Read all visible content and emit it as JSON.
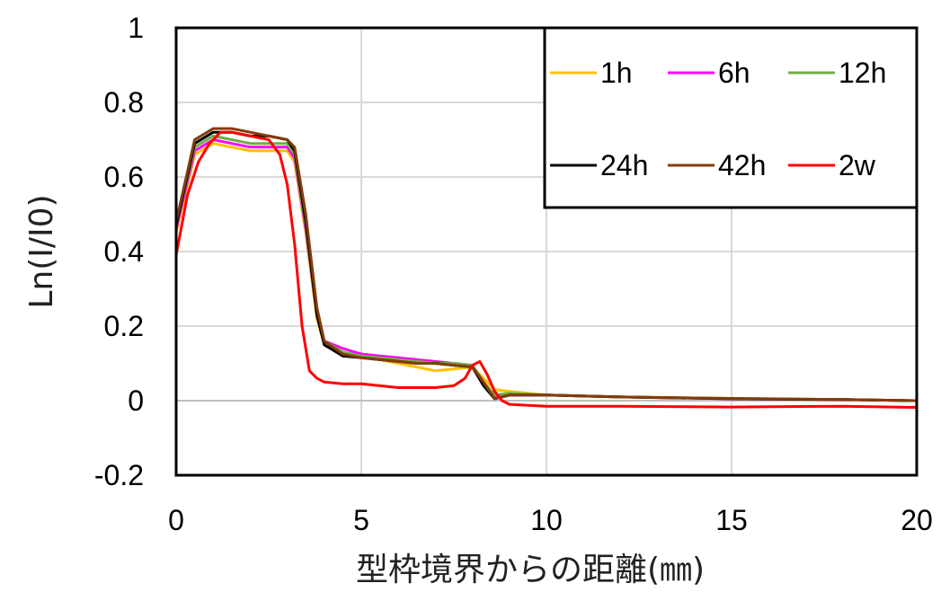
{
  "chart_data": {
    "type": "line",
    "title": "",
    "xlabel": "型枠境界からの距離(㎜)",
    "ylabel": "Ln(I/I0)",
    "xlim": [
      0,
      20
    ],
    "ylim": [
      -0.2,
      1
    ],
    "xticks": [
      "0",
      "5",
      "10",
      "15",
      "20"
    ],
    "yticks": [
      "-0.2",
      "0",
      "0.2",
      "0.4",
      "0.6",
      "0.8",
      "1"
    ],
    "grid": true,
    "legend_position": "top-right",
    "series": [
      {
        "name": "1h",
        "color": "#FFC000",
        "x": [
          0,
          0.5,
          1,
          1.5,
          2,
          2.5,
          3,
          3.2,
          3.5,
          3.8,
          4,
          4.5,
          5,
          5.5,
          6,
          6.5,
          7,
          7.5,
          8,
          8.3,
          8.6,
          9,
          10,
          12,
          15,
          18,
          20
        ],
        "y": [
          0.45,
          0.66,
          0.69,
          0.68,
          0.67,
          0.67,
          0.67,
          0.64,
          0.45,
          0.22,
          0.15,
          0.12,
          0.12,
          0.11,
          0.1,
          0.09,
          0.08,
          0.085,
          0.09,
          0.06,
          0.03,
          0.025,
          0.015,
          0.01,
          0.005,
          0.003,
          0.0
        ]
      },
      {
        "name": "6h",
        "color": "#FF00FF",
        "x": [
          0,
          0.5,
          1,
          1.5,
          2,
          2.5,
          3,
          3.2,
          3.5,
          3.8,
          4,
          4.5,
          5,
          5.5,
          6,
          6.5,
          7,
          7.5,
          8,
          8.3,
          8.6,
          9,
          10,
          12,
          15,
          18,
          20
        ],
        "y": [
          0.46,
          0.67,
          0.7,
          0.69,
          0.68,
          0.68,
          0.68,
          0.65,
          0.46,
          0.23,
          0.16,
          0.14,
          0.125,
          0.12,
          0.115,
          0.11,
          0.105,
          0.1,
          0.095,
          0.05,
          0.01,
          0.015,
          0.015,
          0.01,
          0.005,
          0.003,
          0.0
        ]
      },
      {
        "name": "12h",
        "color": "#70AD47",
        "x": [
          0,
          0.5,
          1,
          1.5,
          2,
          2.5,
          3,
          3.2,
          3.5,
          3.8,
          4,
          4.5,
          5,
          5.5,
          6,
          6.5,
          7,
          7.5,
          8,
          8.3,
          8.6,
          9,
          10,
          12,
          15,
          18,
          20
        ],
        "y": [
          0.47,
          0.68,
          0.71,
          0.7,
          0.69,
          0.69,
          0.69,
          0.66,
          0.47,
          0.23,
          0.16,
          0.13,
          0.12,
          0.115,
          0.11,
          0.105,
          0.1,
          0.1,
          0.095,
          0.05,
          0.015,
          0.02,
          0.015,
          0.01,
          0.006,
          0.003,
          0.0
        ]
      },
      {
        "name": "24h",
        "color": "#000000",
        "x": [
          0,
          0.5,
          1,
          1.5,
          2,
          2.5,
          3,
          3.2,
          3.5,
          3.8,
          4,
          4.5,
          5,
          5.5,
          6,
          6.5,
          7,
          7.5,
          8,
          8.3,
          8.6,
          9,
          10,
          12,
          15,
          18,
          20
        ],
        "y": [
          0.47,
          0.69,
          0.72,
          0.72,
          0.71,
          0.71,
          0.7,
          0.67,
          0.48,
          0.23,
          0.15,
          0.12,
          0.115,
          0.11,
          0.105,
          0.1,
          0.1,
          0.095,
          0.09,
          0.04,
          0.005,
          0.015,
          0.015,
          0.01,
          0.005,
          0.003,
          0.0
        ]
      },
      {
        "name": "42h",
        "color": "#843C0C",
        "x": [
          0,
          0.5,
          1,
          1.5,
          2,
          2.5,
          3,
          3.2,
          3.5,
          3.8,
          4,
          4.5,
          5,
          5.5,
          6,
          6.5,
          7,
          7.5,
          8,
          8.3,
          8.6,
          9,
          10,
          12,
          15,
          18,
          20
        ],
        "y": [
          0.48,
          0.7,
          0.73,
          0.73,
          0.72,
          0.71,
          0.7,
          0.68,
          0.5,
          0.25,
          0.16,
          0.125,
          0.115,
          0.11,
          0.105,
          0.1,
          0.1,
          0.095,
          0.09,
          0.05,
          0.005,
          0.015,
          0.015,
          0.01,
          0.006,
          0.003,
          0.0
        ]
      },
      {
        "name": "2w",
        "color": "#FF0000",
        "x": [
          0,
          0.3,
          0.6,
          0.9,
          1.2,
          1.5,
          2,
          2.5,
          2.8,
          3,
          3.2,
          3.4,
          3.6,
          3.8,
          4,
          4.5,
          5,
          5.5,
          6,
          7,
          7.5,
          7.8,
          8,
          8.2,
          8.4,
          8.6,
          8.8,
          9,
          10,
          12,
          15,
          18,
          20
        ],
        "y": [
          0.39,
          0.55,
          0.64,
          0.69,
          0.72,
          0.72,
          0.71,
          0.7,
          0.66,
          0.58,
          0.42,
          0.2,
          0.08,
          0.06,
          0.05,
          0.045,
          0.045,
          0.04,
          0.035,
          0.035,
          0.04,
          0.06,
          0.095,
          0.105,
          0.07,
          0.025,
          0.0,
          -0.01,
          -0.015,
          -0.015,
          -0.017,
          -0.015,
          -0.018
        ]
      }
    ]
  }
}
